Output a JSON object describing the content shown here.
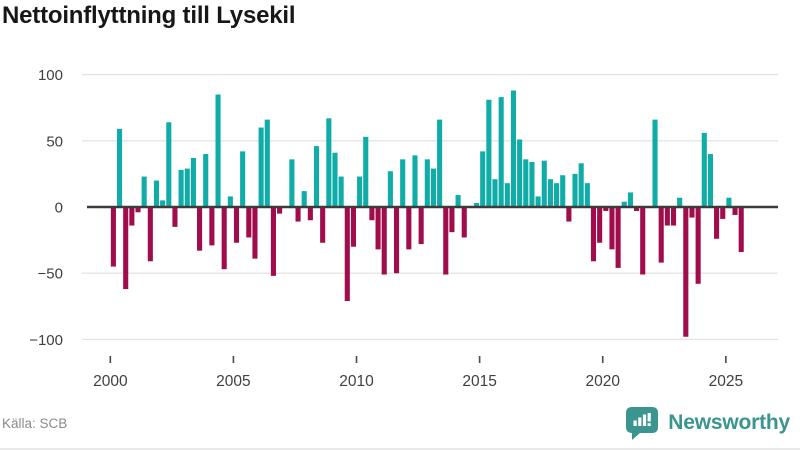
{
  "title": "Nettoinflyttning till Lysekil",
  "source": {
    "label": "Källa: SCB"
  },
  "brand": {
    "name": "Newsworthy",
    "icon": "newsworthy-speech-bubble-bar-chart-icon",
    "color": "#3a958e"
  },
  "colors": {
    "positive": "#10aca7",
    "negative": "#a10c4d",
    "zero_axis": "#3b3b3b",
    "grid": "#e4e4e4",
    "tick_text": "#404040",
    "tick_mark": "#4a4a4a",
    "muted_text": "#8a8a8a"
  },
  "chart_data": {
    "type": "bar",
    "title": "Nettoinflyttning till Lysekil",
    "x_unit": "quarter",
    "start": "2000 Q1",
    "end": "2025 Q3",
    "grid": true,
    "ylim": [
      -110,
      108
    ],
    "y_ticks": [
      100,
      50,
      0,
      -50,
      -100
    ],
    "x_tick_labels": [
      "2000",
      "2005",
      "2010",
      "2015",
      "2020",
      "2025"
    ],
    "x_tick_years": [
      2000,
      2005,
      2010,
      2015,
      2020,
      2025
    ],
    "values": [
      -45,
      59,
      -62,
      -14,
      -4,
      23,
      -41,
      20,
      5,
      64,
      -15,
      28,
      29,
      37,
      -33,
      40,
      -29,
      85,
      -47,
      8,
      -27,
      42,
      -23,
      -39,
      60,
      66,
      -52,
      -5,
      0,
      36,
      -11,
      12,
      -10,
      46,
      -27,
      67,
      41,
      23,
      -71,
      -30,
      23,
      53,
      -10,
      -32,
      -51,
      27,
      -50,
      36,
      -32,
      39,
      -28,
      36,
      29,
      66,
      -51,
      -19,
      9,
      -23,
      0,
      3,
      42,
      81,
      21,
      83,
      18,
      88,
      51,
      36,
      34,
      8,
      35,
      21,
      18,
      24,
      -11,
      25,
      33,
      18,
      -41,
      -27,
      -3,
      -32,
      -46,
      4,
      11,
      -3,
      -51,
      0,
      66,
      -42,
      -14,
      -14,
      7,
      -98,
      -8,
      -58,
      56,
      40,
      -24,
      -9,
      7,
      -6,
      -34
    ]
  }
}
